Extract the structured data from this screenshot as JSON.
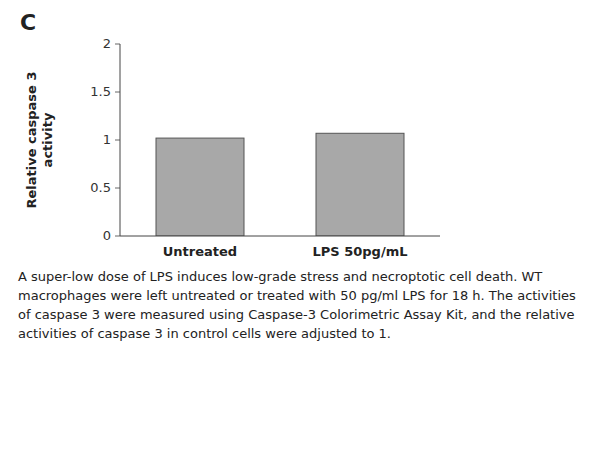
{
  "chart_data": {
    "type": "bar",
    "title": "C",
    "ylabel": "Relative caspase 3\nactivity",
    "categories": [
      "Untreated",
      "LPS 50pg/mL"
    ],
    "values": [
      1.02,
      1.07
    ],
    "color": "#a8a8a8",
    "ylim": [
      0,
      2
    ],
    "yticks": [
      0,
      0.5,
      1,
      1.5,
      2
    ],
    "grid": false,
    "annotations": [
      "A super-low dose of LPS induces low-grade stress and necroptotic cell death. WT macrophages were left untreated or treated with 50 pg/ml LPS for 18 h. The activities of caspase 3 were measured using Caspase-3 Colorimetric Assay Kit, and the relative activities of caspase 3 in control cells were adjusted to 1."
    ]
  }
}
